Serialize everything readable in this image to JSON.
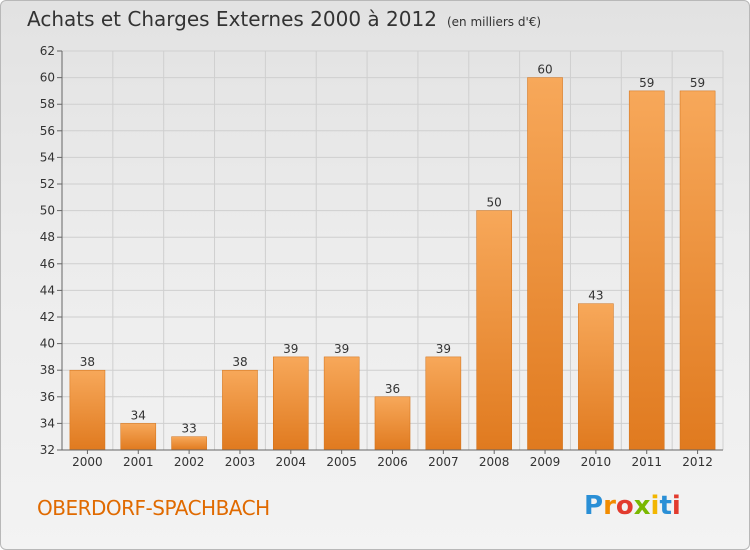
{
  "header": {
    "title": "Achats et Charges Externes 2000 à 2012",
    "unit": "(en milliers d'€)"
  },
  "footer": {
    "commune": "OBERDORF-SPACHBACH",
    "logo_letters": [
      "P",
      "r",
      "o",
      "x",
      "i",
      "t",
      "i"
    ],
    "logo_colors": [
      "#2a8fd6",
      "#f28c00",
      "#e23b2e",
      "#7ab800",
      "#f2b600",
      "#2a8fd6",
      "#e23b2e"
    ]
  },
  "colors": {
    "bar_light": "#f7a85a",
    "bar_dark": "#e07a1f",
    "grid": "#cfcfcf",
    "axis": "#666666",
    "commune": "#e06a00"
  },
  "chart_data": {
    "type": "bar",
    "title": "Achats et Charges Externes 2000 à 2012",
    "subtitle": "(en milliers d'€)",
    "xlabel": "",
    "ylabel": "",
    "categories": [
      "2000",
      "2001",
      "2002",
      "2003",
      "2004",
      "2005",
      "2006",
      "2007",
      "2008",
      "2009",
      "2010",
      "2011",
      "2012"
    ],
    "values": [
      38,
      34,
      33,
      38,
      39,
      39,
      36,
      39,
      50,
      60,
      43,
      59,
      59
    ],
    "data_labels": [
      "38",
      "34",
      "33",
      "38",
      "39",
      "39",
      "36",
      "39",
      "50",
      "60",
      "43",
      "59",
      "59"
    ],
    "ylim": [
      32,
      62
    ],
    "yticks": [
      32,
      34,
      36,
      38,
      40,
      42,
      44,
      46,
      48,
      50,
      52,
      54,
      56,
      58,
      60,
      62
    ],
    "grid": true,
    "legend": "none"
  }
}
